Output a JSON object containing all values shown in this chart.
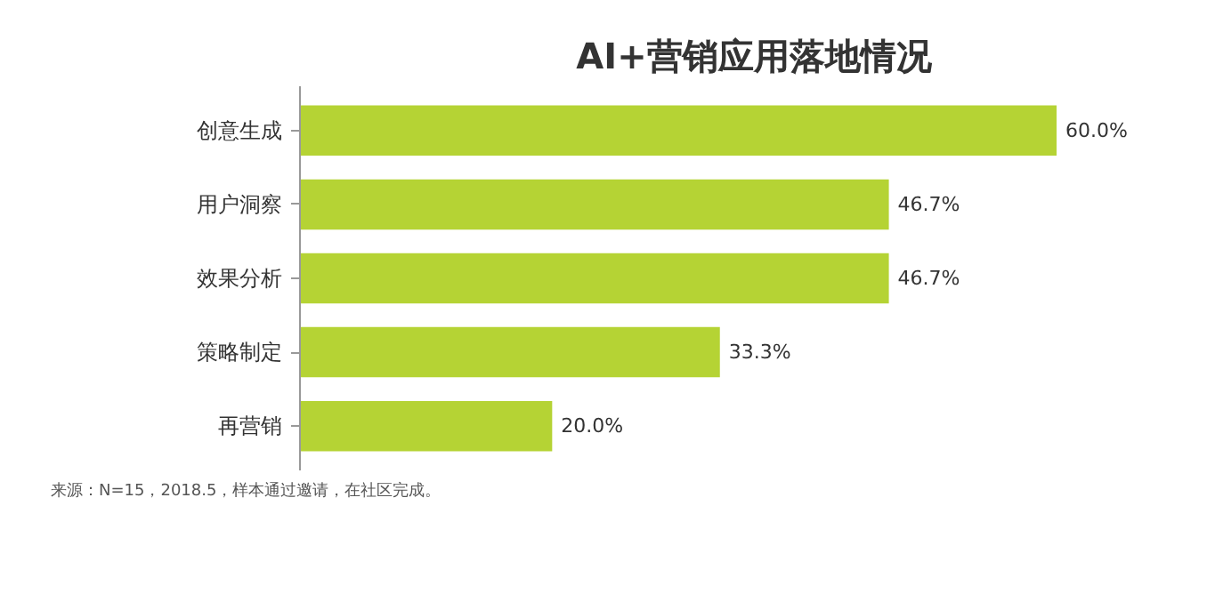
{
  "chart_data": {
    "type": "bar",
    "orientation": "horizontal",
    "title": "AI+营销应用落地情况",
    "categories": [
      "创意生成",
      "用户洞察",
      "效果分析",
      "策略制定",
      "再营销"
    ],
    "values": [
      60.0,
      46.7,
      46.7,
      33.3,
      20.0
    ],
    "value_labels": [
      "60.0%",
      "46.7%",
      "46.7%",
      "33.3%",
      "20.0%"
    ],
    "color": "#b5d334",
    "annotations": [
      "来源：N=15，2018.5，样本通过邀请，在社区完成。"
    ]
  }
}
